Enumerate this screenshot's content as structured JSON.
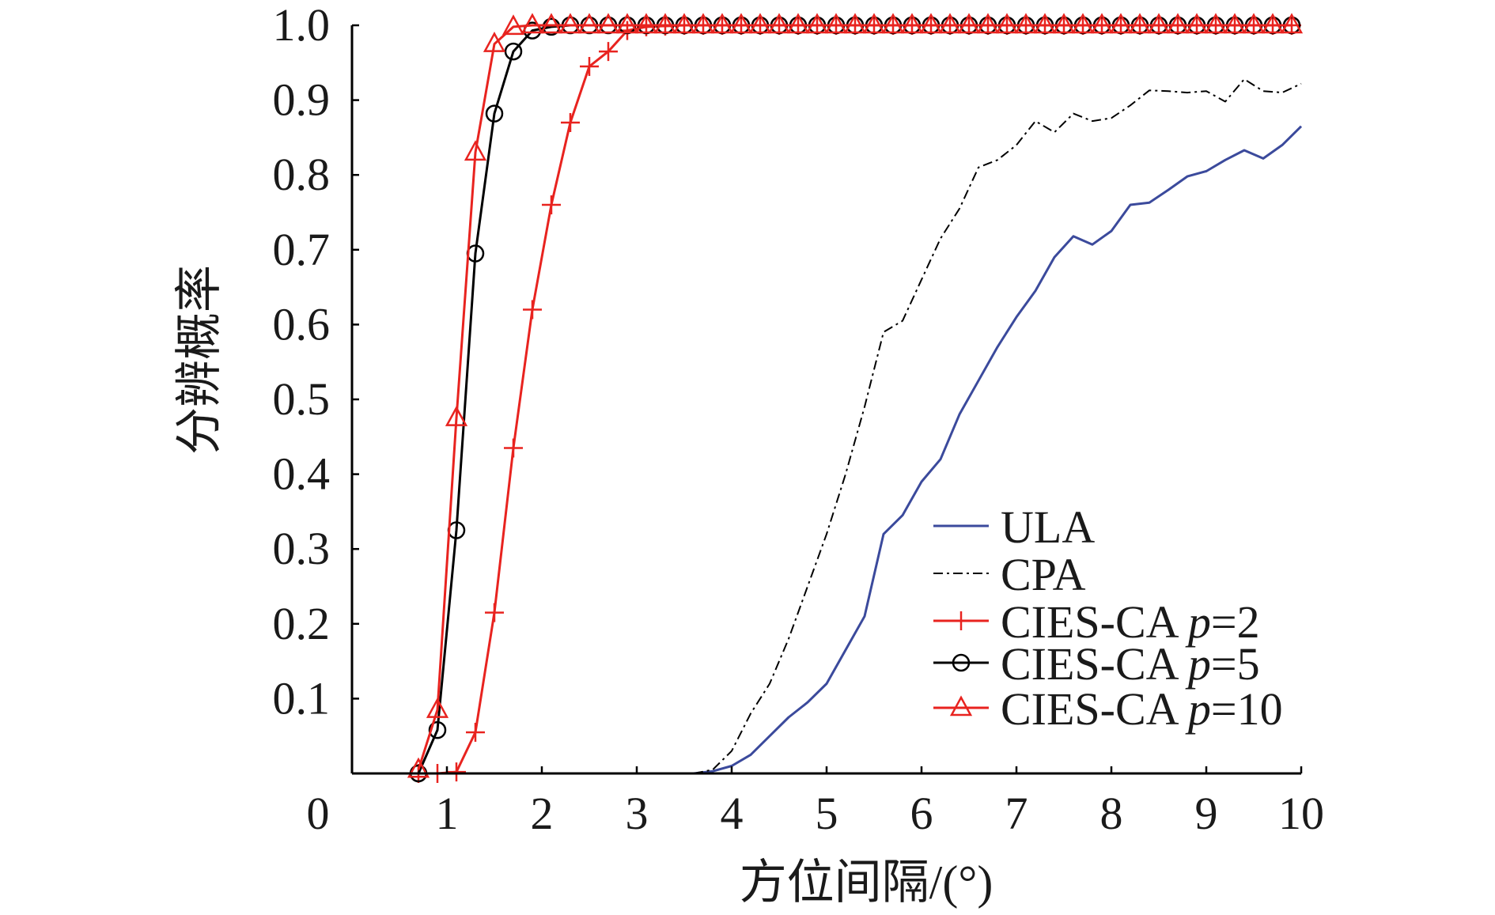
{
  "colors": {
    "ula": "#3b4a9c",
    "cpa": "#000000",
    "cies_p2": "#e8231f",
    "cies_p5": "#000000",
    "cies_p10": "#e8231f",
    "axis": "#000000"
  },
  "chart_data": {
    "type": "line",
    "xlabel": "方位间隔/(°)",
    "ylabel": "分辨概率",
    "xlim": [
      0,
      10
    ],
    "ylim": [
      0,
      1
    ],
    "origin_label": "0",
    "xticks": [
      1,
      2,
      3,
      4,
      5,
      6,
      7,
      8,
      9,
      10
    ],
    "xtick_labels": [
      "1",
      "2",
      "3",
      "4",
      "5",
      "6",
      "7",
      "8",
      "9",
      "10"
    ],
    "yticks": [
      0.1,
      0.2,
      0.3,
      0.4,
      0.5,
      0.6,
      0.7,
      0.8,
      0.9,
      1.0
    ],
    "ytick_labels": [
      "0.1",
      "0.2",
      "0.3",
      "0.4",
      "0.5",
      "0.6",
      "0.7",
      "0.8",
      "0.9",
      "1.0"
    ],
    "legend_position": "bottom-right",
    "series": [
      {
        "key": "ula",
        "name": "ULA",
        "name_prefix": "ULA",
        "name_param": "",
        "name_value": "",
        "style": "solid",
        "marker": "none",
        "x": [
          3.6,
          3.8,
          4.0,
          4.2,
          4.4,
          4.6,
          4.8,
          5.0,
          5.2,
          5.4,
          5.6,
          5.8,
          6.0,
          6.2,
          6.4,
          6.6,
          6.8,
          7.0,
          7.2,
          7.4,
          7.6,
          7.8,
          8.0,
          8.2,
          8.4,
          8.6,
          8.8,
          9.0,
          9.2,
          9.4,
          9.6,
          9.8,
          10.0
        ],
        "y": [
          0.0,
          0.003,
          0.01,
          0.025,
          0.05,
          0.075,
          0.095,
          0.12,
          0.165,
          0.21,
          0.32,
          0.345,
          0.39,
          0.42,
          0.48,
          0.525,
          0.57,
          0.61,
          0.645,
          0.69,
          0.718,
          0.707,
          0.725,
          0.76,
          0.763,
          0.78,
          0.798,
          0.805,
          0.82,
          0.833,
          0.822,
          0.84,
          0.865
        ]
      },
      {
        "key": "cpa",
        "name": "CPA",
        "name_prefix": "CPA",
        "name_param": "",
        "name_value": "",
        "style": "dashdot",
        "marker": "none",
        "x": [
          3.6,
          3.8,
          4.0,
          4.2,
          4.4,
          4.6,
          4.8,
          5.0,
          5.2,
          5.4,
          5.6,
          5.8,
          6.0,
          6.2,
          6.4,
          6.6,
          6.8,
          7.0,
          7.2,
          7.4,
          7.6,
          7.8,
          8.0,
          8.2,
          8.4,
          8.6,
          8.8,
          9.0,
          9.2,
          9.4,
          9.6,
          9.8,
          10.0
        ],
        "y": [
          0.0,
          0.005,
          0.03,
          0.08,
          0.12,
          0.18,
          0.25,
          0.32,
          0.4,
          0.49,
          0.59,
          0.605,
          0.66,
          0.715,
          0.755,
          0.81,
          0.82,
          0.84,
          0.872,
          0.857,
          0.882,
          0.872,
          0.876,
          0.893,
          0.913,
          0.912,
          0.91,
          0.912,
          0.898,
          0.928,
          0.912,
          0.91,
          0.922
        ]
      },
      {
        "key": "cies_p2",
        "name": "CIES-CA p=2",
        "name_prefix": "CIES-CA ",
        "name_param": "p",
        "name_value": "=2",
        "style": "solid",
        "marker": "plus",
        "x": [
          0.7,
          0.9,
          1.1,
          1.3,
          1.5,
          1.7,
          1.9,
          2.1,
          2.3,
          2.5,
          2.7,
          2.9,
          3.1,
          3.3,
          3.5,
          3.7,
          3.9,
          4.1,
          4.3,
          4.5,
          4.7,
          4.9,
          5.1,
          5.3,
          5.5,
          5.7,
          5.9,
          6.1,
          6.3,
          6.5,
          6.7,
          6.9,
          7.1,
          7.3,
          7.5,
          7.7,
          7.9,
          8.1,
          8.3,
          8.5,
          8.7,
          8.9,
          9.1,
          9.3,
          9.5,
          9.7,
          9.9
        ],
        "y": [
          0.0,
          0.0,
          0.002,
          0.055,
          0.215,
          0.435,
          0.62,
          0.76,
          0.87,
          0.945,
          0.965,
          0.993,
          0.998,
          0.999,
          1,
          1,
          1,
          1,
          1,
          1,
          1,
          1,
          1,
          1,
          1,
          1,
          1,
          1,
          1,
          1,
          1,
          1,
          1,
          1,
          1,
          1,
          1,
          1,
          1,
          1,
          1,
          1,
          1,
          1,
          1,
          1,
          1
        ]
      },
      {
        "key": "cies_p5",
        "name": "CIES-CA p=5",
        "name_prefix": "CIES-CA ",
        "name_param": "p",
        "name_value": "=5",
        "style": "solid",
        "marker": "circle",
        "x": [
          0.7,
          0.9,
          1.1,
          1.3,
          1.5,
          1.7,
          1.9,
          2.1,
          2.3,
          2.5,
          2.7,
          2.9,
          3.1,
          3.3,
          3.5,
          3.7,
          3.9,
          4.1,
          4.3,
          4.5,
          4.7,
          4.9,
          5.1,
          5.3,
          5.5,
          5.7,
          5.9,
          6.1,
          6.3,
          6.5,
          6.7,
          6.9,
          7.1,
          7.3,
          7.5,
          7.7,
          7.9,
          8.1,
          8.3,
          8.5,
          8.7,
          8.9,
          9.1,
          9.3,
          9.5,
          9.7,
          9.9
        ],
        "y": [
          0.0,
          0.058,
          0.325,
          0.695,
          0.882,
          0.965,
          0.993,
          0.998,
          1,
          1,
          1,
          1,
          1,
          1,
          1,
          1,
          1,
          1,
          1,
          1,
          1,
          1,
          1,
          1,
          1,
          1,
          1,
          1,
          1,
          1,
          1,
          1,
          1,
          1,
          1,
          1,
          1,
          1,
          1,
          1,
          1,
          1,
          1,
          1,
          1,
          1,
          1
        ]
      },
      {
        "key": "cies_p10",
        "name": "CIES-CA p=10",
        "name_prefix": "CIES-CA ",
        "name_param": "p",
        "name_value": "=10",
        "style": "solid",
        "marker": "triangle",
        "x": [
          0.7,
          0.9,
          1.1,
          1.3,
          1.5,
          1.7,
          1.9,
          2.1,
          2.3,
          2.5,
          2.7,
          2.9,
          3.1,
          3.3,
          3.5,
          3.7,
          3.9,
          4.1,
          4.3,
          4.5,
          4.7,
          4.9,
          5.1,
          5.3,
          5.5,
          5.7,
          5.9,
          6.1,
          6.3,
          6.5,
          6.7,
          6.9,
          7.1,
          7.3,
          7.5,
          7.7,
          7.9,
          8.1,
          8.3,
          8.5,
          8.7,
          8.9,
          9.1,
          9.3,
          9.5,
          9.7,
          9.9
        ],
        "y": [
          0.005,
          0.085,
          0.475,
          0.83,
          0.975,
          0.998,
          1,
          1,
          1,
          1,
          1,
          1,
          1,
          1,
          1,
          1,
          1,
          1,
          1,
          1,
          1,
          1,
          1,
          1,
          1,
          1,
          1,
          1,
          1,
          1,
          1,
          1,
          1,
          1,
          1,
          1,
          1,
          1,
          1,
          1,
          1,
          1,
          1,
          1,
          1,
          1,
          1
        ]
      }
    ]
  }
}
